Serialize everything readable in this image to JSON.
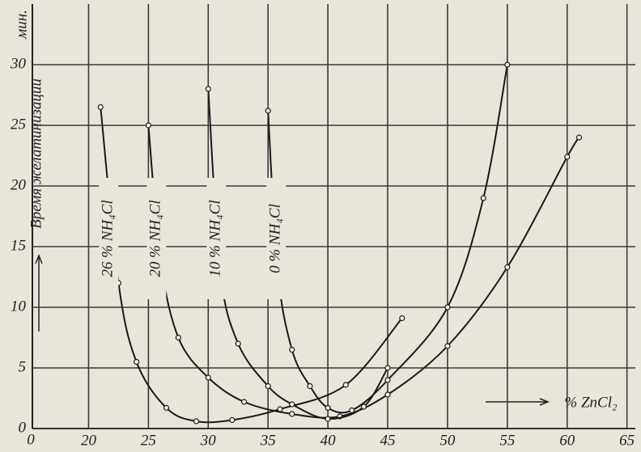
{
  "chart_data": {
    "type": "line",
    "y_label": "Время желатинизации",
    "y_unit": "мин.",
    "x_label": "% ZnCl₂",
    "x_origin_label": "0",
    "xlim": [
      15.3,
      65.7
    ],
    "xticks": [
      20,
      25,
      30,
      35,
      40,
      45,
      50,
      55,
      60,
      65
    ],
    "ylim": [
      0,
      35
    ],
    "yticks": [
      0,
      5,
      10,
      15,
      20,
      25,
      30
    ],
    "grid": true,
    "series": [
      {
        "name": "26 % NH₄Cl",
        "color": "#1a1a1a",
        "x": [
          21,
          22.5,
          24,
          26.5,
          29,
          32,
          36,
          41.5,
          46.2
        ],
        "values": [
          26.5,
          12,
          5.5,
          1.7,
          0.6,
          0.7,
          1.6,
          3.6,
          9.1
        ]
      },
      {
        "name": "20 % NH₄Cl",
        "color": "#1a1a1a",
        "x": [
          25,
          26,
          27.5,
          30,
          33,
          37,
          41,
          45,
          50,
          55,
          60,
          61
        ],
        "values": [
          25,
          14,
          7.5,
          4.2,
          2.2,
          1.2,
          1.0,
          2.8,
          6.8,
          13.3,
          22.4,
          24
        ]
      },
      {
        "name": "10 % NH₄Cl",
        "color": "#1a1a1a",
        "x": [
          30,
          31,
          32.5,
          35,
          37,
          40,
          43,
          45
        ],
        "values": [
          28,
          13,
          7,
          3.5,
          2,
          0.8,
          1.8,
          5
        ]
      },
      {
        "name": "0 % NH₄Cl",
        "color": "#1a1a1a",
        "x": [
          35,
          35.8,
          37,
          38.5,
          40,
          42,
          45,
          50,
          53,
          55
        ],
        "values": [
          26.2,
          13,
          6.5,
          3.5,
          1.7,
          1.5,
          4,
          10,
          19,
          30
        ]
      }
    ]
  }
}
